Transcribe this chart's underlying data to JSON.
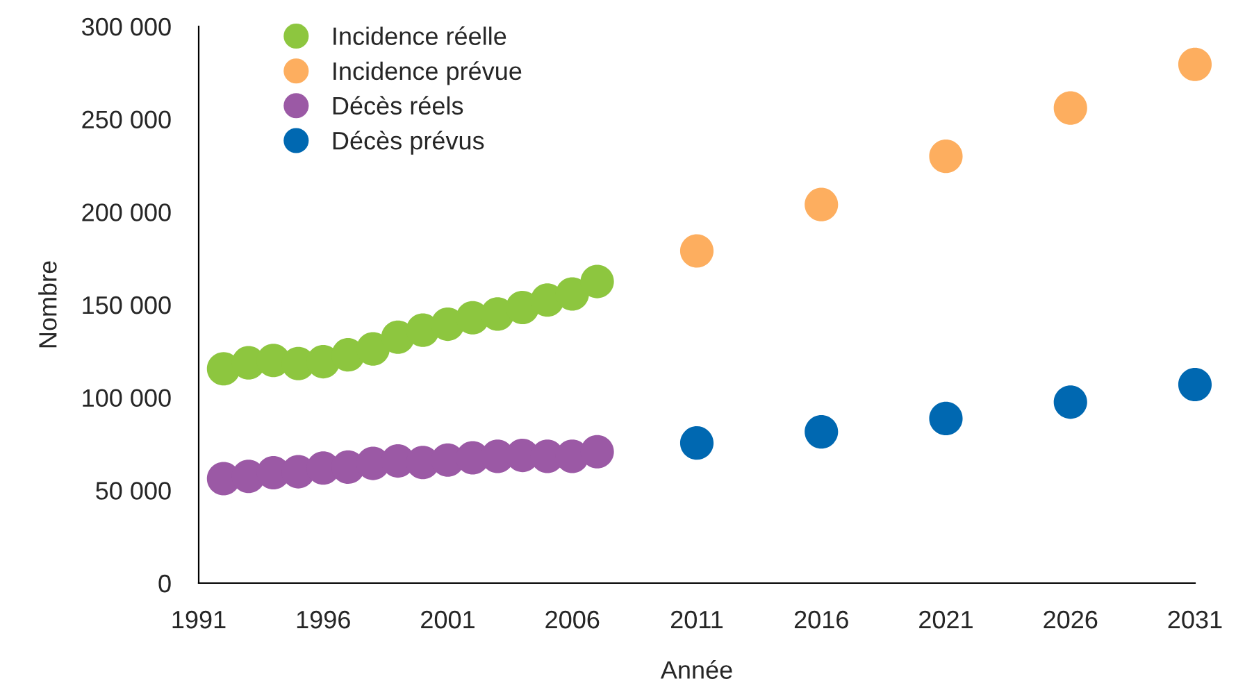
{
  "chart_data": {
    "type": "scatter",
    "xlabel": "Année",
    "ylabel": "Nombre",
    "xlim": [
      1991,
      2031
    ],
    "xticks": [
      1991,
      1996,
      2001,
      2006,
      2011,
      2016,
      2021,
      2026,
      2031
    ],
    "ylim": [
      0,
      300000
    ],
    "yticks": [
      {
        "value": 0,
        "label": "0"
      },
      {
        "value": 50000,
        "label": "50 000"
      },
      {
        "value": 100000,
        "label": "100 000"
      },
      {
        "value": 150000,
        "label": "150 000"
      },
      {
        "value": 200000,
        "label": "200 000"
      },
      {
        "value": 250000,
        "label": "250 000"
      },
      {
        "value": 300000,
        "label": "300 000"
      }
    ],
    "grid": false,
    "legend": "top left",
    "marker": "circle",
    "series": [
      {
        "name": "Incidence réelle",
        "color": "#8dc63f",
        "x": [
          1992,
          1993,
          1994,
          1995,
          1996,
          1997,
          1998,
          1999,
          2000,
          2001,
          2002,
          2003,
          2004,
          2005,
          2006,
          2007
        ],
        "values": [
          115500,
          118700,
          120000,
          118300,
          119300,
          123000,
          126200,
          132500,
          136300,
          139500,
          143000,
          145000,
          148500,
          152500,
          155800,
          162500
        ]
      },
      {
        "name": "Incidence prévue",
        "color": "#fdae5f",
        "x": [
          2011,
          2016,
          2021,
          2026,
          2031
        ],
        "values": [
          179000,
          204000,
          230000,
          256000,
          279500
        ]
      },
      {
        "name": "Décès réels",
        "color": "#9b59a5",
        "x": [
          1992,
          1993,
          1994,
          1995,
          1996,
          1997,
          1998,
          1999,
          2000,
          2001,
          2002,
          2003,
          2004,
          2005,
          2006,
          2007
        ],
        "values": [
          56300,
          57500,
          59500,
          60000,
          62000,
          62500,
          64500,
          65800,
          65000,
          66300,
          67500,
          68300,
          68800,
          68300,
          68300,
          70800
        ]
      },
      {
        "name": "Décès prévus",
        "color": "#0068b1",
        "x": [
          2011,
          2016,
          2021,
          2026,
          2031
        ],
        "values": [
          75500,
          81500,
          88700,
          97500,
          107000
        ]
      }
    ]
  }
}
